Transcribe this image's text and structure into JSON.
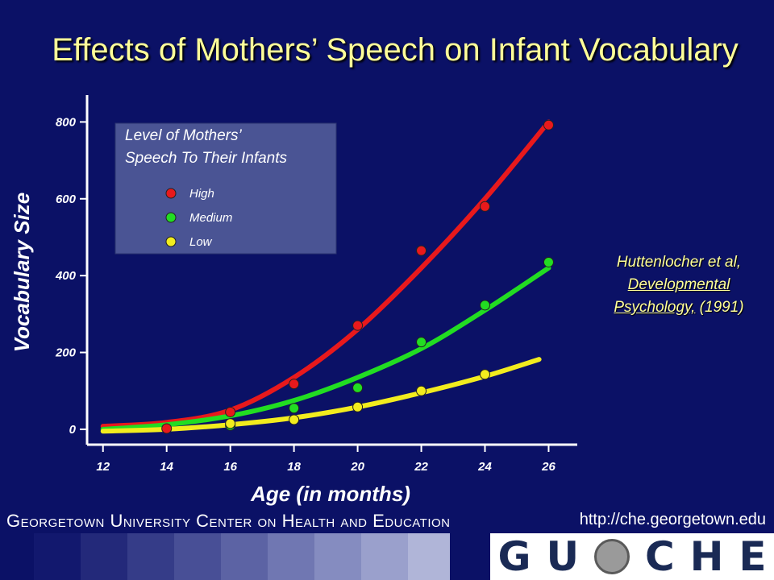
{
  "title": "Effects of Mothers’ Speech on Infant Vocabulary",
  "citation": {
    "line1": "Huttenlocher et al,",
    "line2": "Developmental",
    "line3_underlined": "Psychology,",
    "line3_rest": " (1991)"
  },
  "footer": {
    "organization": "Georgetown University Center on Health and Education",
    "url": "http://che.georgetown.edu",
    "logo_text": [
      "G",
      "U",
      "C",
      "H",
      "E"
    ]
  },
  "colors": {
    "background": "#0b1166",
    "title": "#ffff99",
    "high": "#e8191c",
    "medium": "#22dd22",
    "low": "#f2ec1e",
    "legend_box": "#4a5494"
  },
  "chart_data": {
    "type": "scatter",
    "title": "",
    "xlabel": "Age (in months)",
    "ylabel": "Vocabulary Size",
    "x_ticks": [
      12,
      14,
      16,
      18,
      20,
      22,
      24,
      26
    ],
    "y_ticks": [
      0,
      200,
      400,
      600,
      800
    ],
    "xlim": [
      11.5,
      26.9
    ],
    "ylim": [
      -40,
      870
    ],
    "legend_title": "Level of Mothers’ Speech To Their Infants",
    "legend_placement": "top-left",
    "grid": false,
    "fit_curves": true,
    "series": [
      {
        "name": "High",
        "color": "#e8191c",
        "x": [
          14,
          16,
          18,
          20,
          22,
          24,
          26
        ],
        "y": [
          2,
          45,
          118,
          270,
          465,
          580,
          792
        ],
        "curve": [
          [
            12,
            8
          ],
          [
            14,
            18
          ],
          [
            16,
            50
          ],
          [
            18,
            135
          ],
          [
            20,
            260
          ],
          [
            22,
            420
          ],
          [
            24,
            600
          ],
          [
            26,
            800
          ]
        ]
      },
      {
        "name": "Medium",
        "color": "#22dd22",
        "x": [
          16,
          18,
          20,
          22,
          24,
          26
        ],
        "y": [
          10,
          55,
          108,
          227,
          323,
          435
        ],
        "curve": [
          [
            12,
            0
          ],
          [
            14,
            12
          ],
          [
            16,
            35
          ],
          [
            18,
            75
          ],
          [
            20,
            135
          ],
          [
            22,
            210
          ],
          [
            24,
            310
          ],
          [
            26,
            420
          ]
        ]
      },
      {
        "name": "Low",
        "color": "#f2ec1e",
        "x": [
          16,
          18,
          20,
          22,
          24
        ],
        "y": [
          15,
          25,
          58,
          100,
          143
        ],
        "curve": [
          [
            12,
            -5
          ],
          [
            14,
            0
          ],
          [
            16,
            12
          ],
          [
            18,
            30
          ],
          [
            20,
            58
          ],
          [
            22,
            95
          ],
          [
            24,
            138
          ],
          [
            25.7,
            182
          ]
        ]
      }
    ]
  }
}
